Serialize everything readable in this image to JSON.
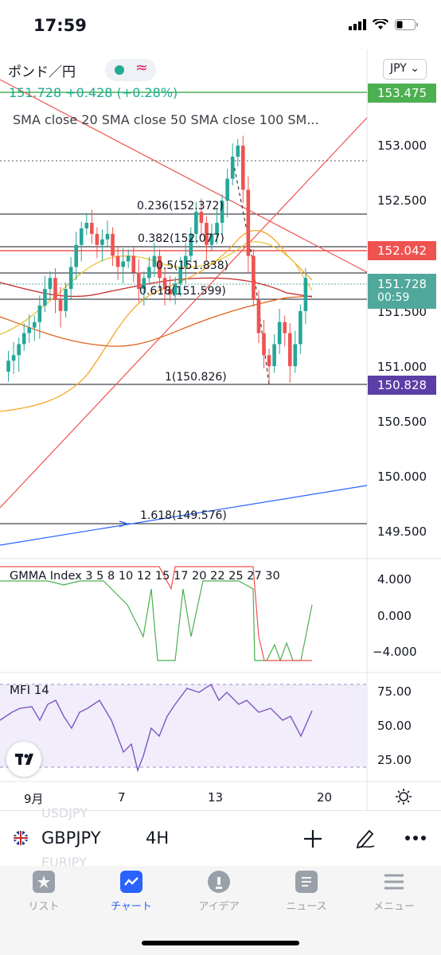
{
  "status_bar": {
    "time": "17:59"
  },
  "header": {
    "symbol_title": "ポンド／円",
    "status_wave": "≈",
    "currency_button": "JPY ⌄",
    "price_line": "151.728  +0.428 (+0.28%)",
    "sma_legend": "SMA close 20 SMA close 50 SMA close 100 SM..."
  },
  "price_axis": {
    "ticks": [
      "153.000",
      "152.500",
      "151.500",
      "151.000",
      "150.500",
      "150.000",
      "149.500"
    ],
    "tags": {
      "top_green": "153.475",
      "red": "152.042",
      "last_price": "151.728",
      "countdown": "00:59",
      "purple": "150.828"
    },
    "colors": {
      "green": "#4caf50",
      "red": "#ef5350",
      "teal": "#4fa89b",
      "purple": "#5b3fa6",
      "blue_line": "#2962ff"
    }
  },
  "fib_levels": {
    "f0236": "0.236(152.372)",
    "f0382": "0.382(152.077)",
    "f05": "0.5(151.838)",
    "f0618": "0.618(151.599)",
    "f1": "1(150.826)",
    "f1618": "1.618(149.576)"
  },
  "gmma_pane": {
    "label": "GMMA Index  3 5 8 10 12 15 17 20 22 25 27 30",
    "ticks": [
      "4.000",
      "0.000",
      "−4.000"
    ]
  },
  "mfi_pane": {
    "label": "MFI  14",
    "ticks": [
      "75.00",
      "50.00",
      "25.00"
    ]
  },
  "time_axis": {
    "ticks": [
      "9月",
      "7",
      "13",
      "20"
    ]
  },
  "bottom_toolbar": {
    "ghost_above": "USDJPY",
    "symbol": "GBPJPY",
    "timeframe": "4H",
    "ghost_below": "EURJPY"
  },
  "tabs": [
    {
      "label": "リスト",
      "icon": "star-icon"
    },
    {
      "label": "チャート",
      "icon": "chart-icon"
    },
    {
      "label": "アイデア",
      "icon": "idea-icon"
    },
    {
      "label": "ニュース",
      "icon": "news-icon"
    },
    {
      "label": "メニュー",
      "icon": "menu-icon"
    }
  ]
}
